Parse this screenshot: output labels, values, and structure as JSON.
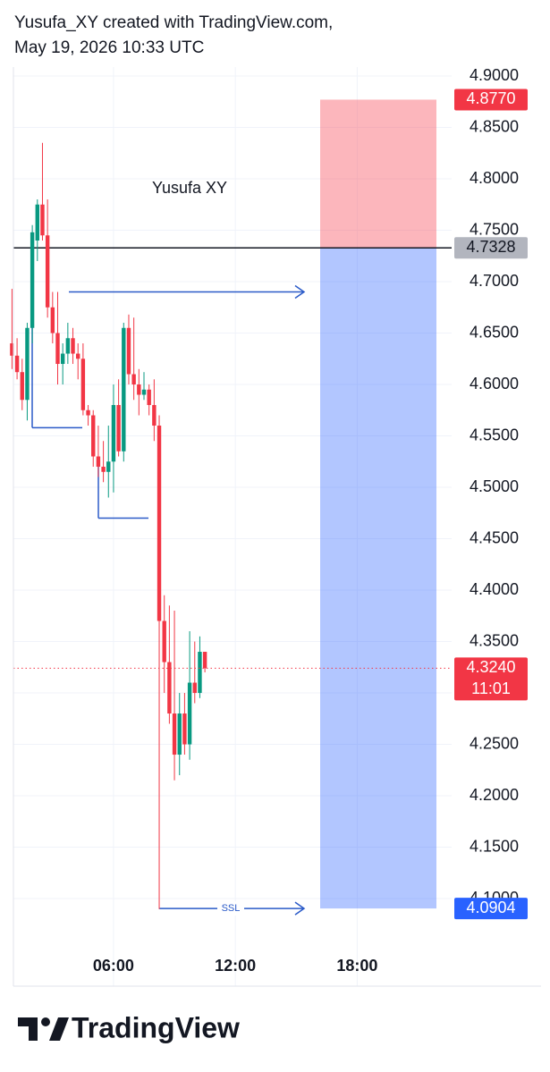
{
  "header": {
    "line1": "Yusufa_XY created with TradingView.com,",
    "line2": "May 19, 2026 10:33 UTC"
  },
  "chart_data": {
    "type": "candlestick",
    "x": [
      1,
      1.25,
      1.5,
      1.75,
      2,
      2.25,
      2.5,
      2.75,
      3,
      3.25,
      3.5,
      3.75,
      4,
      4.25,
      4.5,
      4.75,
      5,
      5.25,
      5.5,
      5.75,
      6,
      6.25,
      6.5,
      6.75,
      7,
      7.25,
      7.5,
      7.75,
      8,
      8.25,
      8.5,
      8.75,
      9,
      9.25,
      9.5,
      9.75,
      10,
      10.25,
      10.5
    ],
    "open": [
      4.64,
      4.628,
      4.612,
      4.585,
      4.655,
      4.74,
      4.775,
      4.745,
      4.675,
      4.65,
      4.62,
      4.63,
      4.645,
      4.63,
      4.625,
      4.575,
      4.57,
      4.53,
      4.52,
      4.515,
      4.525,
      4.58,
      4.535,
      4.655,
      4.61,
      4.6,
      4.59,
      4.595,
      4.58,
      4.56,
      4.37,
      4.33,
      4.28,
      4.24,
      4.28,
      4.25,
      4.31,
      4.3,
      4.34
    ],
    "high": [
      4.693,
      4.645,
      4.625,
      4.66,
      4.755,
      4.78,
      4.835,
      4.78,
      4.69,
      4.69,
      4.64,
      4.66,
      4.655,
      4.64,
      4.64,
      4.58,
      4.575,
      4.56,
      4.545,
      4.56,
      4.6,
      4.605,
      4.66,
      4.668,
      4.665,
      4.615,
      4.612,
      4.6,
      4.605,
      4.57,
      4.395,
      4.385,
      4.38,
      4.3,
      4.3,
      4.36,
      4.35,
      4.355,
      4.34
    ],
    "low": [
      4.615,
      4.605,
      4.575,
      4.565,
      4.64,
      4.72,
      4.74,
      4.665,
      4.64,
      4.6,
      4.6,
      4.62,
      4.62,
      4.605,
      4.57,
      4.56,
      4.52,
      4.51,
      4.505,
      4.49,
      4.495,
      4.53,
      4.525,
      4.6,
      4.585,
      4.57,
      4.585,
      4.57,
      4.545,
      4.09,
      4.3,
      4.27,
      4.215,
      4.22,
      4.24,
      4.235,
      4.29,
      4.295,
      4.32
    ],
    "close": [
      4.628,
      4.612,
      4.585,
      4.655,
      4.748,
      4.775,
      4.745,
      4.675,
      4.65,
      4.62,
      4.63,
      4.645,
      4.63,
      4.625,
      4.575,
      4.57,
      4.53,
      4.52,
      4.515,
      4.525,
      4.58,
      4.535,
      4.655,
      4.61,
      4.6,
      4.59,
      4.595,
      4.58,
      4.56,
      4.37,
      4.33,
      4.28,
      4.24,
      4.28,
      4.25,
      4.31,
      4.3,
      4.34,
      4.324
    ],
    "up_color": "#089981",
    "down_color": "#f23645",
    "xlim": [
      1.07,
      22.65
    ],
    "xticks": [
      {
        "value": 6,
        "label": "06:00"
      },
      {
        "value": 12,
        "label": "12:00"
      },
      {
        "value": 18,
        "label": "18:00"
      }
    ],
    "ylim": [
      4.0696,
      4.9087
    ],
    "yticks": [
      {
        "value": 4.9,
        "label": "4.9000"
      },
      {
        "value": 4.85,
        "label": "4.8500"
      },
      {
        "value": 4.8,
        "label": "4.8000"
      },
      {
        "value": 4.75,
        "label": "4.7500"
      },
      {
        "value": 4.7,
        "label": "4.7000"
      },
      {
        "value": 4.65,
        "label": "4.6500"
      },
      {
        "value": 4.6,
        "label": "4.6000"
      },
      {
        "value": 4.55,
        "label": "4.5500"
      },
      {
        "value": 4.5,
        "label": "4.5000"
      },
      {
        "value": 4.45,
        "label": "4.4500"
      },
      {
        "value": 4.4,
        "label": "4.4000"
      },
      {
        "value": 4.35,
        "label": "4.3500"
      },
      {
        "value": 4.3,
        "label": "4.3000"
      },
      {
        "value": 4.25,
        "label": "4.2500"
      },
      {
        "value": 4.2,
        "label": "4.2000"
      },
      {
        "value": 4.15,
        "label": "4.1500"
      },
      {
        "value": 4.1,
        "label": "4.1000"
      }
    ],
    "grid": true,
    "annotation": "Yusufa XY",
    "drawings": [
      {
        "price": 4.69
      },
      {
        "price": 4.558
      },
      {
        "price": 4.47
      },
      {
        "price": 4.0904,
        "label": "SSL"
      }
    ],
    "position": {
      "stop": {
        "value": 4.877,
        "label": "4.8770"
      },
      "entry": {
        "value": 4.7328,
        "label": "4.7328"
      },
      "target": {
        "value": 4.0904,
        "label": "4.0904"
      }
    },
    "last_price": {
      "value": 4.324,
      "label": "4.3240",
      "countdown": "11:01"
    }
  },
  "footer": {
    "brand": "TradingView"
  }
}
